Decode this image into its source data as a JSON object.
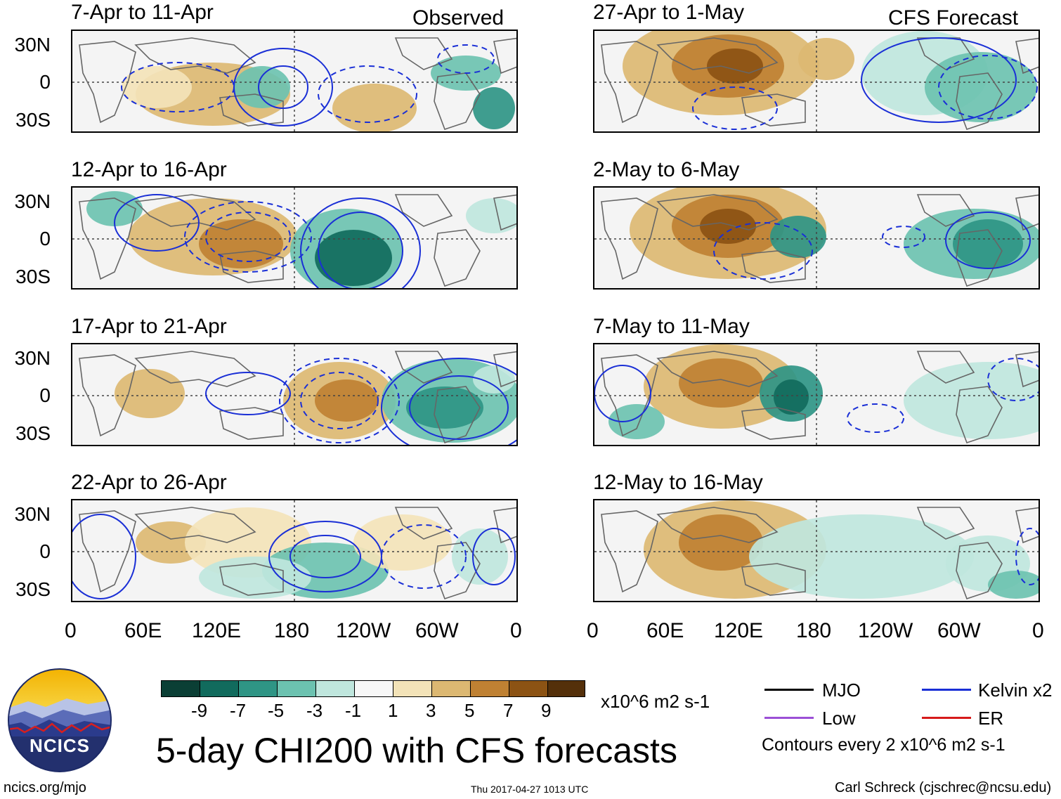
{
  "headers": {
    "observed": "Observed",
    "forecast": "CFS Forecast"
  },
  "lat_labels": [
    "30N",
    "0",
    "30S"
  ],
  "lon_labels": [
    "0",
    "60E",
    "120E",
    "180",
    "120W",
    "60W",
    "0"
  ],
  "panels": {
    "left": [
      "7-Apr to 11-Apr",
      "12-Apr to 16-Apr",
      "17-Apr to 21-Apr",
      "22-Apr to 26-Apr"
    ],
    "right": [
      "27-Apr to 1-May",
      "2-May to 6-May",
      "7-May to 11-May",
      "12-May to 16-May"
    ]
  },
  "colorbar": {
    "colors": [
      "#0b3f35",
      "#116b5d",
      "#2f9585",
      "#6cc2b0",
      "#bfe6dd",
      "#f7f7f7",
      "#f3e3b8",
      "#dcb872",
      "#bf8133",
      "#8c5314",
      "#54300a"
    ],
    "ticks": [
      "-9",
      "-7",
      "-5",
      "-3",
      "-1",
      "1",
      "3",
      "5",
      "7",
      "9"
    ],
    "units": "x10^6 m2 s-1"
  },
  "legend": {
    "mjo": {
      "label": "MJO",
      "color": "#000000"
    },
    "low": {
      "label": "Low",
      "color": "#9b4fd6"
    },
    "kelvin": {
      "label": "Kelvin x2",
      "color": "#1a2fd6"
    },
    "er": {
      "label": "ER",
      "color": "#d61a1a"
    },
    "note": "Contours every 2 x10^6 m2 s-1"
  },
  "title": "5-day CHI200 with CFS forecasts",
  "logo": {
    "text": "NCICS"
  },
  "footer": {
    "left": "ncics.org/mjo",
    "center": "Thu 2017-04-27 1013 UTC",
    "right": "Carl Schreck (cjschrec@ncsu.edu)"
  }
}
